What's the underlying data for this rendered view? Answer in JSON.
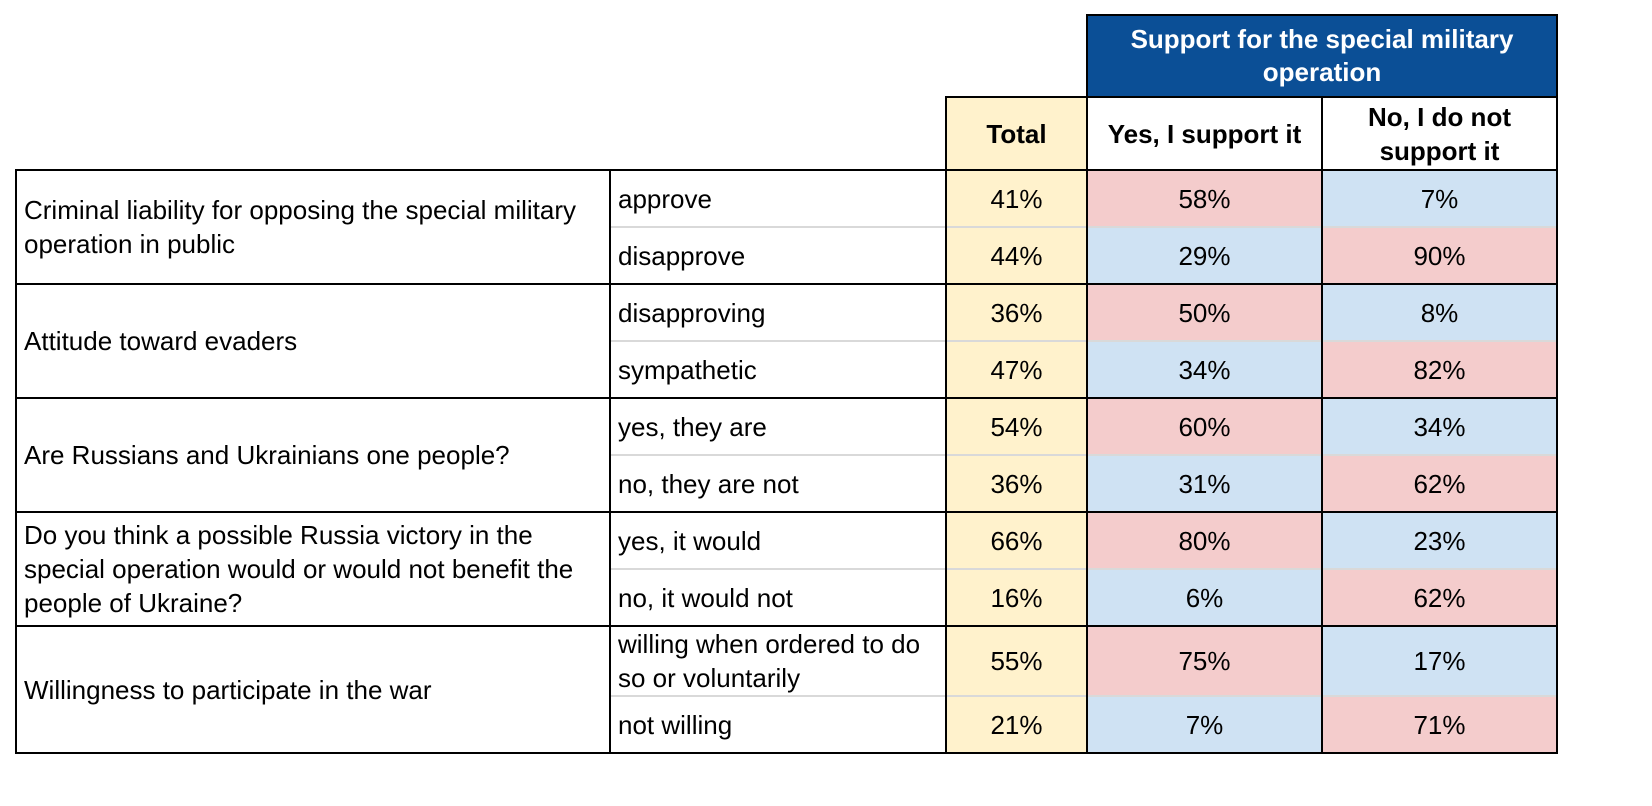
{
  "chart_data": {
    "type": "table",
    "group_header": "Support for the special military operation",
    "columns": [
      "Total",
      "Yes, I support it",
      "No, I do not support it"
    ],
    "groups": [
      {
        "question": "Criminal liability for opposing the special military operation in public",
        "rows": [
          {
            "answer": "approve",
            "values": [
              "41%",
              "58%",
              "7%"
            ]
          },
          {
            "answer": "disapprove",
            "values": [
              "44%",
              "29%",
              "90%"
            ]
          }
        ]
      },
      {
        "question": "Attitude toward evaders",
        "rows": [
          {
            "answer": "disapproving",
            "values": [
              "36%",
              "50%",
              "8%"
            ]
          },
          {
            "answer": "sympathetic",
            "values": [
              "47%",
              "34%",
              "82%"
            ]
          }
        ]
      },
      {
        "question": "Are Russians and Ukrainians one people?",
        "rows": [
          {
            "answer": "yes, they are",
            "values": [
              "54%",
              "60%",
              "34%"
            ]
          },
          {
            "answer": "no, they are not",
            "values": [
              "36%",
              "31%",
              "62%"
            ]
          }
        ]
      },
      {
        "question": "Do you think a possible Russia victory in the special operation would or would not benefit the people of Ukraine?",
        "rows": [
          {
            "answer": "yes, it would",
            "values": [
              "66%",
              "80%",
              "23%"
            ]
          },
          {
            "answer": "no, it would not",
            "values": [
              "16%",
              "6%",
              "62%"
            ]
          }
        ]
      },
      {
        "question": "Willingness to participate in the war",
        "rows": [
          {
            "answer": "willing when ordered to do so or voluntarily",
            "values": [
              "55%",
              "75%",
              "17%"
            ]
          },
          {
            "answer": "not willing",
            "values": [
              "21%",
              "7%",
              "71%"
            ]
          }
        ]
      }
    ],
    "colors": {
      "header_blue": "#0b4f96",
      "total_fill": "#fff2cc",
      "high_fill": "#f4cccc",
      "low_fill": "#cfe2f3",
      "border": "#000000",
      "inner_divider": "#d9d9d9"
    }
  }
}
